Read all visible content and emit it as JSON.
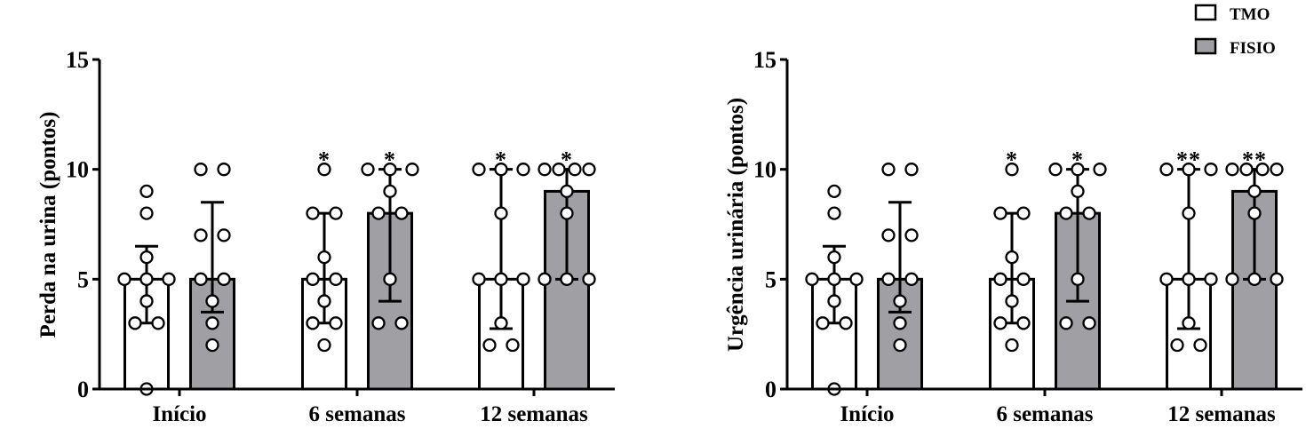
{
  "legend": [
    {
      "name": "TMO",
      "color": "#ffffff"
    },
    {
      "name": "FISIO",
      "color": "#a0a0a4"
    }
  ],
  "chart_data": [
    {
      "type": "bar",
      "ylabel": "Perda na urina (pontos)",
      "xlabel": "",
      "ylim": [
        0,
        15
      ],
      "yticks": [
        0,
        5,
        10,
        15
      ],
      "categories": [
        "Início",
        "6 semanas",
        "12 semanas"
      ],
      "series": [
        {
          "name": "TMO",
          "color": "#ffffff",
          "values": [
            5,
            5,
            5
          ],
          "error_low": [
            3,
            3,
            2.75
          ],
          "error_high": [
            6.5,
            8,
            10
          ],
          "points": [
            [
              9,
              8,
              6,
              5,
              5,
              5,
              4,
              3,
              3,
              0
            ],
            [
              10,
              8,
              8,
              6,
              5,
              5,
              4,
              3,
              3,
              2
            ],
            [
              10,
              10,
              10,
              8,
              5,
              5,
              5,
              3,
              2,
              2
            ]
          ],
          "annotations": [
            "",
            "*",
            "*"
          ]
        },
        {
          "name": "FISIO",
          "color": "#a0a0a4",
          "values": [
            5,
            8,
            9
          ],
          "error_low": [
            3.5,
            4,
            5
          ],
          "error_high": [
            8.5,
            10,
            10
          ],
          "points": [
            [
              10,
              10,
              7,
              7,
              5,
              5,
              4,
              3,
              2
            ],
            [
              10,
              10,
              10,
              9,
              8,
              8,
              5,
              3,
              3
            ],
            [
              10,
              10,
              10,
              10,
              9,
              8,
              5,
              5,
              5
            ]
          ],
          "annotations": [
            "",
            "*",
            "*"
          ]
        }
      ]
    },
    {
      "type": "bar",
      "ylabel": "Urgência urinária (pontos)",
      "xlabel": "",
      "ylim": [
        0,
        15
      ],
      "yticks": [
        0,
        5,
        10,
        15
      ],
      "categories": [
        "Início",
        "6 semanas",
        "12 semanas"
      ],
      "series": [
        {
          "name": "TMO",
          "color": "#ffffff",
          "values": [
            5,
            5,
            5
          ],
          "error_low": [
            3,
            3,
            2.75
          ],
          "error_high": [
            6.5,
            8,
            10
          ],
          "points": [
            [
              9,
              8,
              6,
              5,
              5,
              5,
              4,
              3,
              3,
              0
            ],
            [
              10,
              8,
              8,
              6,
              5,
              5,
              4,
              3,
              3,
              2
            ],
            [
              10,
              10,
              10,
              8,
              5,
              5,
              5,
              3,
              2,
              2
            ]
          ],
          "annotations": [
            "",
            "*",
            "**"
          ]
        },
        {
          "name": "FISIO",
          "color": "#a0a0a4",
          "values": [
            5,
            8,
            9
          ],
          "error_low": [
            3.5,
            4,
            5
          ],
          "error_high": [
            8.5,
            10,
            10
          ],
          "points": [
            [
              10,
              10,
              7,
              7,
              5,
              5,
              4,
              3,
              2
            ],
            [
              10,
              10,
              10,
              9,
              8,
              8,
              5,
              3,
              3
            ],
            [
              10,
              10,
              10,
              10,
              9,
              8,
              5,
              5,
              5
            ]
          ],
          "annotations": [
            "",
            "*",
            "**"
          ]
        }
      ]
    }
  ]
}
